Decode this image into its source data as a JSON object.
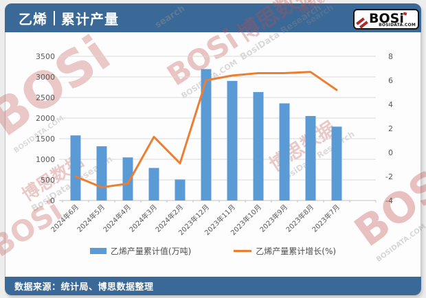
{
  "header": {
    "title_left": "乙烯",
    "title_right": "累计产量",
    "logo_text": "BOSi",
    "logo_domain": "BOSIDATA.COM"
  },
  "legend": {
    "bar_label": "乙烯产量累计值(万吨)",
    "line_label": "乙烯产量累计增长(%)"
  },
  "footer": {
    "source": "数据来源：统计局、博思数据整理"
  },
  "watermark": {
    "logo": "BOSi",
    "cn": "博思数据",
    "en": "BosiData Research",
    "domain": "BOSIDATA.COM",
    "frag": "search"
  },
  "colors": {
    "header_bg": "#3a6897",
    "bar": "#5B9BD5",
    "line": "#ED7D31",
    "grid": "#d9d9d9",
    "axis_line": "#bfbfbf",
    "axis_text": "#595959",
    "watermark_red": "#C0504D"
  },
  "chart_data": {
    "type": "bar",
    "subtype": "bar+line combo, dual axis",
    "title": "乙烯 | 累计产量",
    "categories": [
      "2024年6月",
      "2024年5月",
      "2024年4月",
      "2024年3月",
      "2024年2月",
      "2023年12月",
      "2023年11月",
      "2023年10月",
      "2023年9月",
      "2023年8月",
      "2023年7月"
    ],
    "series": [
      {
        "name": "乙烯产量累计值(万吨)",
        "type": "bar",
        "axis": "left",
        "color": "#5B9BD5",
        "values": [
          1580,
          1316,
          1046,
          790,
          511,
          3190,
          2903,
          2632,
          2358,
          2051,
          1793
        ]
      },
      {
        "name": "乙烯产量累计增长(%)",
        "type": "line",
        "axis": "right",
        "color": "#ED7D31",
        "values": [
          -2.0,
          -2.9,
          -2.6,
          1.3,
          -0.9,
          6.0,
          6.4,
          6.6,
          6.6,
          6.7,
          5.2
        ]
      }
    ],
    "left_axis": {
      "min": 0,
      "max": 3500,
      "ticks": [
        0,
        500,
        1000,
        1500,
        2000,
        2500,
        3000,
        3500
      ]
    },
    "right_axis": {
      "min": -4,
      "max": 8,
      "ticks": [
        -4,
        -2,
        0,
        2,
        4,
        6,
        8
      ]
    },
    "grid": true,
    "legend_position": "bottom",
    "xlabel": "",
    "ylabel_left": "万吨",
    "ylabel_right": "%"
  }
}
